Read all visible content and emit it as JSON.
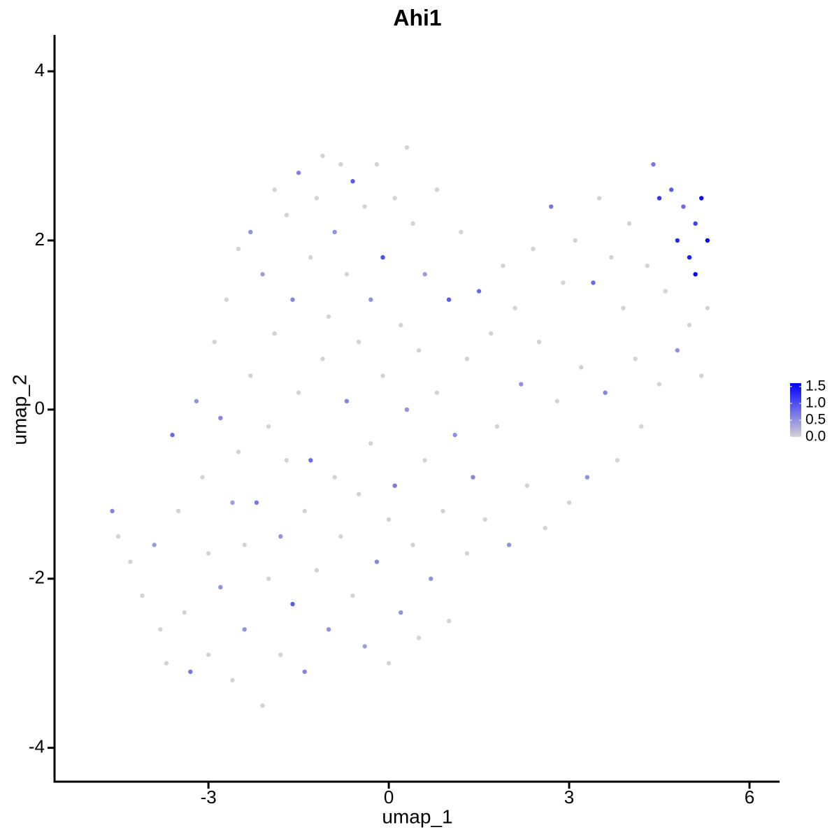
{
  "chart_data": {
    "type": "scatter",
    "title": "Ahi1",
    "x_label": "umap_1",
    "y_label": "umap_2",
    "xlim": [
      -5.56,
      6.5
    ],
    "ylim": [
      -4.4,
      4.43
    ],
    "xticks": [
      -3,
      0,
      3,
      6
    ],
    "yticks": [
      -4,
      -2,
      0,
      2,
      4
    ],
    "x": [
      -4.6,
      -4.5,
      -4.3,
      -4.1,
      -3.9,
      -3.8,
      -3.7,
      -3.6,
      -3.5,
      -3.4,
      -3.3,
      -3.2,
      -3.1,
      -3.0,
      -3.0,
      -2.9,
      -2.8,
      -2.8,
      -2.7,
      -2.6,
      -2.6,
      -2.5,
      -2.5,
      -2.4,
      -2.4,
      -2.3,
      -2.3,
      -2.2,
      -2.1,
      -2.1,
      -2.0,
      -2.0,
      -1.9,
      -1.9,
      -1.8,
      -1.8,
      -1.7,
      -1.7,
      -1.6,
      -1.6,
      -1.5,
      -1.5,
      -1.4,
      -1.4,
      -1.3,
      -1.3,
      -1.2,
      -1.2,
      -1.1,
      -1.1,
      -1.0,
      -1.0,
      -0.9,
      -0.9,
      -0.8,
      -0.8,
      -0.7,
      -0.7,
      -0.6,
      -0.6,
      -0.5,
      -0.5,
      -0.4,
      -0.4,
      -0.3,
      -0.3,
      -0.2,
      -0.2,
      -0.1,
      -0.1,
      0.0,
      0.0,
      0.1,
      0.1,
      0.2,
      0.2,
      0.3,
      0.3,
      0.4,
      0.4,
      0.5,
      0.5,
      0.6,
      0.6,
      0.7,
      0.8,
      0.8,
      0.9,
      1.0,
      1.0,
      1.1,
      1.2,
      1.3,
      1.3,
      1.4,
      1.5,
      1.6,
      1.7,
      1.8,
      1.9,
      2.0,
      2.1,
      2.2,
      2.3,
      2.4,
      2.5,
      2.6,
      2.7,
      2.8,
      2.9,
      3.0,
      3.1,
      3.2,
      3.3,
      3.4,
      3.5,
      3.6,
      3.7,
      3.8,
      3.9,
      4.0,
      4.1,
      4.2,
      4.3,
      4.4,
      4.5,
      4.5,
      4.6,
      4.7,
      4.8,
      4.8,
      4.9,
      5.0,
      5.0,
      5.1,
      5.1,
      5.2,
      5.2,
      5.3,
      5.3
    ],
    "values": [
      -1.2,
      -1.5,
      -1.8,
      -2.2,
      -1.6,
      -2.6,
      -3.0,
      -0.3,
      -1.2,
      -2.4,
      -3.1,
      0.1,
      -0.8,
      -1.7,
      -2.9,
      0.8,
      -0.1,
      -2.1,
      1.3,
      -1.1,
      -3.2,
      1.9,
      -0.5,
      -1.6,
      -2.6,
      2.1,
      0.4,
      -1.1,
      -3.5,
      1.6,
      -0.2,
      -2.0,
      2.6,
      0.9,
      -1.5,
      -2.9,
      2.3,
      -0.6,
      1.3,
      -2.3,
      2.8,
      0.2,
      -1.2,
      -3.1,
      1.8,
      -0.6,
      2.5,
      -1.9,
      3.0,
      0.6,
      -2.6,
      1.1,
      2.1,
      -0.8,
      2.9,
      -1.5,
      0.1,
      1.6,
      -2.2,
      2.7,
      0.8,
      -1.0,
      -2.8,
      2.4,
      1.3,
      -0.4,
      2.9,
      -1.8,
      0.4,
      1.8,
      -3.0,
      -1.3,
      2.5,
      -0.9,
      1.0,
      -2.4,
      3.1,
      0.0,
      -1.6,
      2.2,
      0.7,
      -2.7,
      -0.6,
      1.6,
      -2.0,
      2.6,
      0.2,
      -1.2,
      1.3,
      -2.5,
      -0.3,
      2.1,
      0.6,
      -1.7,
      -0.8,
      1.4,
      -1.3,
      0.9,
      -0.2,
      1.7,
      -1.6,
      1.2,
      0.3,
      -0.9,
      1.9,
      0.8,
      -1.4,
      2.4,
      0.1,
      1.5,
      -1.1,
      2.0,
      0.5,
      -0.8,
      1.5,
      2.5,
      0.2,
      1.8,
      -0.6,
      1.2,
      2.2,
      0.6,
      -0.2,
      1.7,
      2.9,
      2.5,
      0.3,
      1.4,
      2.6,
      2.0,
      0.7,
      2.4,
      1.8,
      1.0,
      2.2,
      1.6,
      0.4,
      2.5,
      2.0,
      1.2
    ],
    "expression": [
      0.6,
      0,
      0,
      0,
      0.4,
      0,
      0,
      0.8,
      0,
      0,
      0.7,
      0.5,
      0,
      0,
      0,
      0,
      0.6,
      0.5,
      0,
      0.4,
      0,
      0,
      0,
      0,
      0.5,
      0.5,
      0,
      0.7,
      0,
      0.4,
      0,
      0,
      0,
      0,
      0.5,
      0,
      0,
      0,
      0.6,
      0.9,
      0.6,
      0,
      0,
      0.6,
      0,
      0.8,
      0,
      0,
      0,
      0,
      0.5,
      0,
      0.5,
      0,
      0,
      0,
      0.6,
      0,
      0,
      0.9,
      0,
      0,
      0.4,
      0,
      0.5,
      0,
      0,
      0.6,
      0,
      1.0,
      0,
      0,
      0,
      0.7,
      0,
      0.5,
      0,
      0.5,
      0,
      0,
      0,
      0,
      0,
      0.4,
      0.5,
      0,
      0,
      0,
      0.9,
      0,
      0.5,
      0,
      0,
      0,
      0.6,
      0.8,
      0,
      0,
      0,
      0,
      0.5,
      0,
      0.5,
      0,
      0,
      0,
      0,
      0.7,
      0,
      0,
      0,
      0,
      0,
      0.5,
      0.8,
      0,
      0.6,
      0,
      0,
      0,
      0,
      0,
      0,
      0,
      0.7,
      1.2,
      0,
      0,
      0.9,
      1.3,
      0.5,
      0.8,
      1.4,
      0,
      1.1,
      1.6,
      0,
      1.5,
      1.6,
      0
    ],
    "colorbar": {
      "lim": [
        0,
        1.6
      ],
      "low": "#d3d3d3",
      "high": "#0000ff",
      "ticks": [
        {
          "value": 0,
          "label": "0.0"
        },
        0.5,
        {
          "value": 1,
          "label": "1.0"
        },
        1.5
      ]
    }
  }
}
